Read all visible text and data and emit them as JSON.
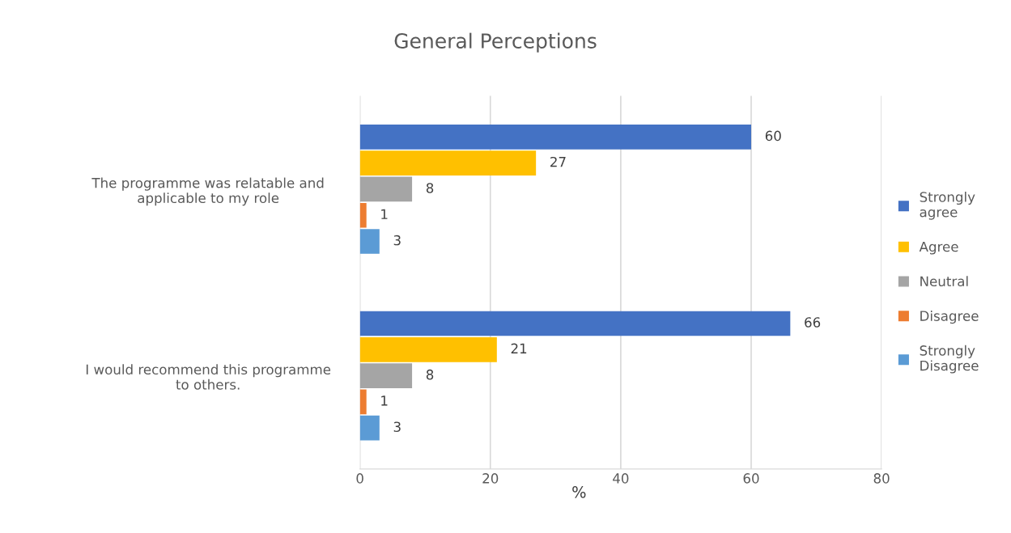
{
  "chart_data": {
    "type": "bar",
    "orientation": "horizontal",
    "title": "General Perceptions",
    "xlabel": "%",
    "categories": [
      "The programme was relatable and applicable to my role",
      "I would recommend this programme to others."
    ],
    "series": [
      {
        "name": "Strongly agree",
        "color": "#4472c4",
        "values": [
          60,
          66
        ]
      },
      {
        "name": "Agree",
        "color": "#ffc000",
        "values": [
          27,
          21
        ]
      },
      {
        "name": "Neutral",
        "color": "#a5a5a5",
        "values": [
          8,
          8
        ]
      },
      {
        "name": "Disagree",
        "color": "#ed7d31",
        "values": [
          1,
          1
        ]
      },
      {
        "name": "Strongly Disagree",
        "color": "#5b9bd5",
        "values": [
          3,
          3
        ]
      }
    ],
    "xlim": [
      0,
      80
    ],
    "xticks": [
      0,
      20,
      40,
      60,
      80
    ],
    "grid": "x",
    "legend": "right",
    "data_labels": true
  }
}
